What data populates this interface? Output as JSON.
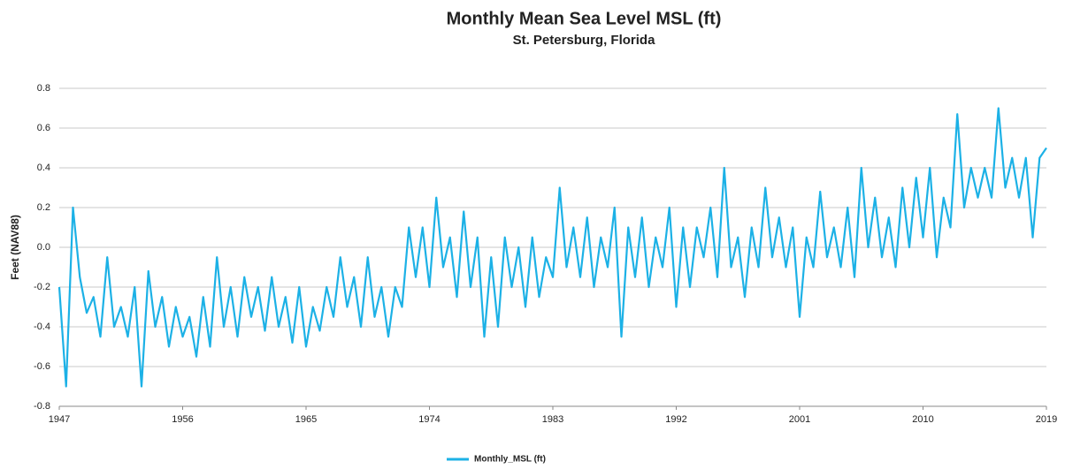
{
  "chart_data": {
    "type": "line",
    "title": "Monthly Mean Sea Level MSL (ft)",
    "subtitle": "St. Petersburg, Florida",
    "y_label": "Feet (NAV88)",
    "x": [
      1947,
      1947.5,
      1948,
      1948.5,
      1949,
      1949.5,
      1950,
      1950.5,
      1951,
      1951.5,
      1952,
      1952.5,
      1953,
      1953.5,
      1954,
      1954.5,
      1955,
      1955.5,
      1956,
      1956.5,
      1957,
      1957.5,
      1958,
      1958.5,
      1959,
      1959.5,
      1960,
      1960.5,
      1961,
      1961.5,
      1962,
      1962.5,
      1963,
      1963.5,
      1964,
      1964.5,
      1965,
      1965.5,
      1966,
      1966.5,
      1967,
      1967.5,
      1968,
      1968.5,
      1969,
      1969.5,
      1970,
      1970.5,
      1971,
      1971.5,
      1972,
      1972.5,
      1973,
      1973.5,
      1974,
      1974.5,
      1975,
      1975.5,
      1976,
      1976.5,
      1977,
      1977.5,
      1978,
      1978.5,
      1979,
      1979.5,
      1980,
      1980.5,
      1981,
      1981.5,
      1982,
      1982.5,
      1983,
      1983.5,
      1984,
      1984.5,
      1985,
      1985.5,
      1986,
      1986.5,
      1987,
      1987.5,
      1988,
      1988.5,
      1989,
      1989.5,
      1990,
      1990.5,
      1991,
      1991.5,
      1992,
      1992.5,
      1993,
      1993.5,
      1994,
      1994.5,
      1995,
      1995.5,
      1996,
      1996.5,
      1997,
      1997.5,
      1998,
      1998.5,
      1999,
      1999.5,
      2000,
      2000.5,
      2001,
      2001.5,
      2002,
      2002.5,
      2003,
      2003.5,
      2004,
      2004.5,
      2005,
      2005.5,
      2006,
      2006.5,
      2007,
      2007.5,
      2008,
      2008.5,
      2009,
      2009.5,
      2010,
      2010.5,
      2011,
      2011.5,
      2012,
      2012.5,
      2013,
      2013.5,
      2014,
      2014.5,
      2015,
      2015.5,
      2016,
      2016.5,
      2017,
      2017.5,
      2018,
      2018.5,
      2019
    ],
    "series": [
      {
        "name": "Monthly_MSL (ft)",
        "color": "#1cb1e6",
        "values": [
          -0.2,
          -0.7,
          0.2,
          -0.15,
          -0.33,
          -0.25,
          -0.45,
          -0.05,
          -0.4,
          -0.3,
          -0.45,
          -0.2,
          -0.7,
          -0.12,
          -0.4,
          -0.25,
          -0.5,
          -0.3,
          -0.45,
          -0.35,
          -0.55,
          -0.25,
          -0.5,
          -0.05,
          -0.4,
          -0.2,
          -0.45,
          -0.15,
          -0.35,
          -0.2,
          -0.42,
          -0.15,
          -0.4,
          -0.25,
          -0.48,
          -0.2,
          -0.5,
          -0.3,
          -0.42,
          -0.2,
          -0.35,
          -0.05,
          -0.3,
          -0.15,
          -0.4,
          -0.05,
          -0.35,
          -0.2,
          -0.45,
          -0.2,
          -0.3,
          0.1,
          -0.15,
          0.1,
          -0.2,
          0.25,
          -0.1,
          0.05,
          -0.25,
          0.18,
          -0.2,
          0.05,
          -0.45,
          -0.05,
          -0.4,
          0.05,
          -0.2,
          0.0,
          -0.3,
          0.05,
          -0.25,
          -0.05,
          -0.15,
          0.3,
          -0.1,
          0.1,
          -0.15,
          0.15,
          -0.2,
          0.05,
          -0.1,
          0.2,
          -0.45,
          0.1,
          -0.15,
          0.15,
          -0.2,
          0.05,
          -0.1,
          0.2,
          -0.3,
          0.1,
          -0.2,
          0.1,
          -0.05,
          0.2,
          -0.15,
          0.4,
          -0.1,
          0.05,
          -0.25,
          0.1,
          -0.1,
          0.3,
          -0.05,
          0.15,
          -0.1,
          0.1,
          -0.35,
          0.05,
          -0.1,
          0.28,
          -0.05,
          0.1,
          -0.1,
          0.2,
          -0.15,
          0.4,
          0.0,
          0.25,
          -0.05,
          0.15,
          -0.1,
          0.3,
          0.0,
          0.35,
          0.05,
          0.4,
          -0.05,
          0.25,
          0.1,
          0.67,
          0.2,
          0.4,
          0.25,
          0.4,
          0.25,
          0.7,
          0.3,
          0.45,
          0.25,
          0.45,
          0.05,
          0.45,
          0.5
        ]
      }
    ],
    "xlim": [
      1947,
      2019
    ],
    "xticks": [
      1947,
      1956,
      1965,
      1974,
      1983,
      1992,
      2001,
      2010,
      2019
    ],
    "ylim": [
      -0.8,
      0.8
    ],
    "yticks": [
      -0.8,
      -0.6,
      -0.4,
      -0.2,
      {
        "value": 0,
        "label": "0.0"
      },
      0.2,
      0.4,
      0.6,
      0.8
    ],
    "grid": true,
    "legend": "bottom"
  }
}
